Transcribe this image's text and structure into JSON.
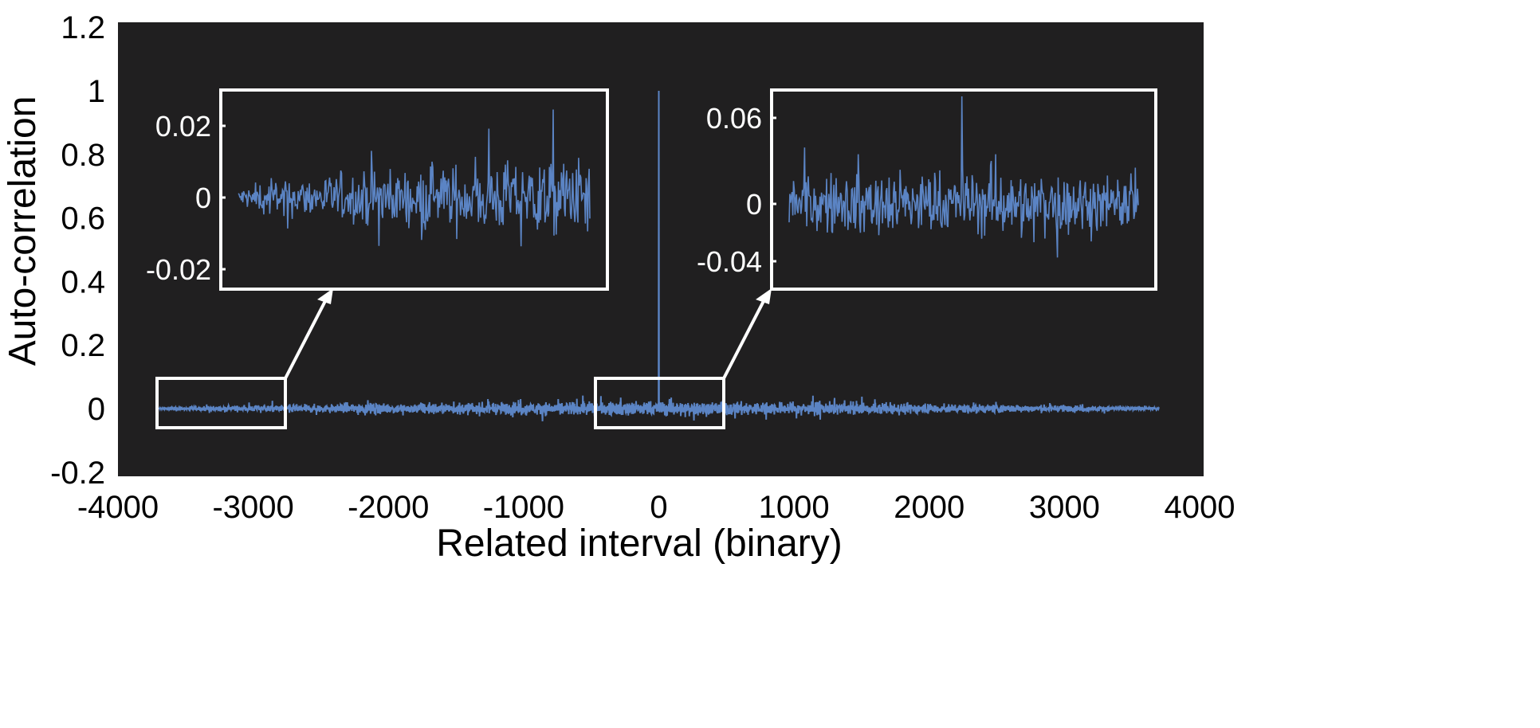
{
  "chart_data": {
    "type": "line",
    "xlabel": "Related interval (binary)",
    "ylabel": "Auto-correlation",
    "xlim": [
      -4000,
      4000
    ],
    "ylim": [
      -0.2,
      1.2
    ],
    "xticks": [
      "-4000",
      "-3000",
      "-2000",
      "-1000",
      "0",
      "1000",
      "2000",
      "3000",
      "4000"
    ],
    "xtick_values": [
      -4000,
      -3000,
      -2000,
      -1000,
      0,
      1000,
      2000,
      3000,
      4000
    ],
    "yticks": [
      "-0.2",
      "0",
      "0.2",
      "0.4",
      "0.6",
      "0.8",
      "1",
      "1.2"
    ],
    "ytick_values": [
      -0.2,
      0,
      0.2,
      0.4,
      0.6,
      0.8,
      1,
      1.2
    ],
    "grid": false,
    "background": "#201f20",
    "line_color": "#5b84c4",
    "series": [
      {
        "name": "auto-correlation",
        "x_range": [
          -3700,
          3700
        ],
        "peak": {
          "x": 0,
          "y": 1
        },
        "noise_amplitude_edges": 0.002,
        "noise_amplitude_center": 0.02
      }
    ],
    "insets": [
      {
        "name": "left-zoom",
        "x_range": [
          -3700,
          -2760
        ],
        "yticks": [
          "0.02",
          "0",
          "-0.02"
        ],
        "ytick_values": [
          0.02,
          0,
          -0.02
        ],
        "ylim": [
          -0.023,
          0.03
        ]
      },
      {
        "name": "center-zoom",
        "x_range": [
          -470,
          480
        ],
        "yticks": [
          "0.06",
          "0",
          "-0.04"
        ],
        "ytick_values": [
          0.06,
          0,
          -0.04
        ],
        "ylim": [
          -0.06,
          0.079
        ]
      }
    ]
  }
}
